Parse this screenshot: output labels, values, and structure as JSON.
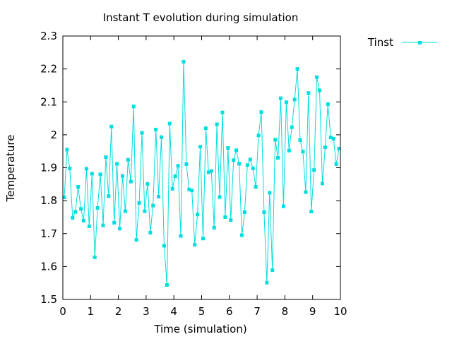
{
  "chart_data": {
    "type": "line",
    "title": "Instant T evolution during simulation",
    "xlabel": "Time (simulation)",
    "ylabel": "Temperature",
    "xlim": [
      0,
      10
    ],
    "ylim": [
      1.5,
      2.3
    ],
    "xticks": [
      0,
      1,
      2,
      3,
      4,
      5,
      6,
      7,
      8,
      9,
      10
    ],
    "yticks": [
      1.5,
      1.6,
      1.7,
      1.8,
      1.9,
      2,
      2.1,
      2.2,
      2.3
    ],
    "grid": false,
    "legend": "top-right, outside plot",
    "series": [
      {
        "name": "Tinst",
        "color": "#00dede",
        "marker": "square",
        "x": [
          0.05,
          0.15,
          0.25,
          0.35,
          0.45,
          0.55,
          0.65,
          0.75,
          0.85,
          0.95,
          1.05,
          1.15,
          1.25,
          1.35,
          1.45,
          1.55,
          1.65,
          1.75,
          1.85,
          1.95,
          2.05,
          2.15,
          2.25,
          2.35,
          2.45,
          2.55,
          2.65,
          2.75,
          2.85,
          2.95,
          3.05,
          3.15,
          3.25,
          3.35,
          3.45,
          3.55,
          3.65,
          3.75,
          3.85,
          3.95,
          4.05,
          4.15,
          4.25,
          4.35,
          4.45,
          4.55,
          4.65,
          4.75,
          4.85,
          4.95,
          5.05,
          5.15,
          5.25,
          5.35,
          5.45,
          5.55,
          5.65,
          5.75,
          5.85,
          5.95,
          6.05,
          6.15,
          6.25,
          6.35,
          6.45,
          6.55,
          6.65,
          6.75,
          6.85,
          6.95,
          7.05,
          7.15,
          7.25,
          7.35,
          7.45,
          7.55,
          7.65,
          7.75,
          7.85,
          7.95,
          8.05,
          8.15,
          8.25,
          8.35,
          8.45,
          8.55,
          8.65,
          8.75,
          8.85,
          8.95,
          9.05,
          9.15,
          9.25,
          9.35,
          9.45,
          9.55,
          9.65,
          9.75,
          9.85,
          9.95
        ],
        "y": [
          1.81,
          1.955,
          1.898,
          1.748,
          1.766,
          1.842,
          1.775,
          1.739,
          1.897,
          1.722,
          1.882,
          1.628,
          1.778,
          1.88,
          1.725,
          1.932,
          1.814,
          2.025,
          1.733,
          1.912,
          1.715,
          1.875,
          1.768,
          1.924,
          1.858,
          2.086,
          1.681,
          1.793,
          2.006,
          1.768,
          1.851,
          1.703,
          1.785,
          2.016,
          1.812,
          1.993,
          1.663,
          1.544,
          2.034,
          1.836,
          1.874,
          1.906,
          1.693,
          2.222,
          1.911,
          1.834,
          1.831,
          1.666,
          1.758,
          1.964,
          1.685,
          2.02,
          1.886,
          1.89,
          1.718,
          2.032,
          1.811,
          2.068,
          1.75,
          1.96,
          1.741,
          1.923,
          1.953,
          1.912,
          1.695,
          1.765,
          1.908,
          1.925,
          1.898,
          1.842,
          1.998,
          2.069,
          1.765,
          1.551,
          1.824,
          1.589,
          1.985,
          1.93,
          2.111,
          1.783,
          2.099,
          1.952,
          2.023,
          2.107,
          2.2,
          1.984,
          1.949,
          1.826,
          2.127,
          1.767,
          1.893,
          2.175,
          2.135,
          1.852,
          1.962,
          2.093,
          1.992,
          1.988,
          1.911,
          1.958
        ]
      }
    ]
  }
}
